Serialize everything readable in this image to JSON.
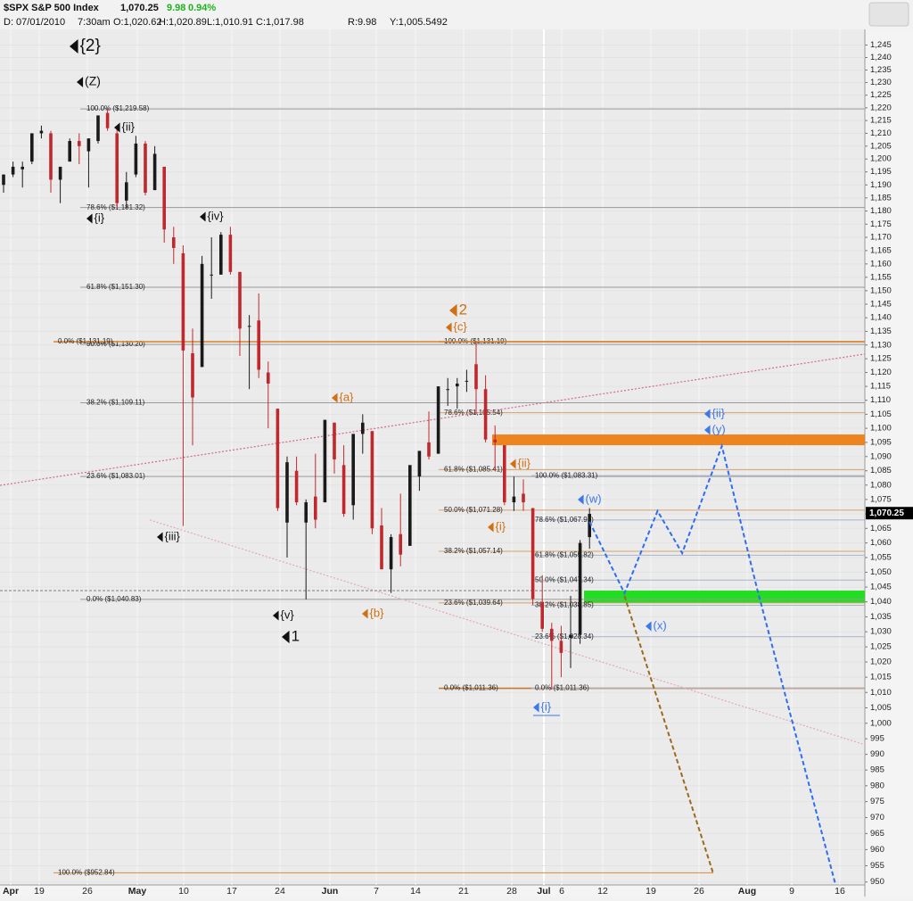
{
  "header": {
    "symbol": "$SPX S&P 500 Index",
    "change": "9.98",
    "change_pct": "0.94%",
    "date": "D: 07/01/2010",
    "time": "7:30am",
    "open": "O:1,020.62",
    "high": "H:1,020.89",
    "low": "L:1,010.91",
    "close": "C:1,017.98",
    "range": "R:9.98",
    "y": "Y:1,005.5492"
  },
  "chart_data": {
    "type": "candlestick",
    "log_scale": true,
    "grid": true,
    "ylim": [
      949.1,
      1251.3
    ],
    "yticks": [
      950,
      955,
      960,
      965,
      970,
      975,
      980,
      985,
      990,
      995,
      {
        "value": 1000,
        "label": "1,000"
      },
      {
        "value": 1005,
        "label": "1,005"
      },
      {
        "value": 1010,
        "label": "1,010"
      },
      {
        "value": 1015,
        "label": "1,015"
      },
      {
        "value": 1020,
        "label": "1,020"
      },
      {
        "value": 1025,
        "label": "1,025"
      },
      {
        "value": 1030,
        "label": "1,030"
      },
      {
        "value": 1035,
        "label": "1,035"
      },
      {
        "value": 1040,
        "label": "1,040"
      },
      {
        "value": 1045,
        "label": "1,045"
      },
      {
        "value": 1050,
        "label": "1,050"
      },
      {
        "value": 1055,
        "label": "1,055"
      },
      {
        "value": 1060,
        "label": "1,060"
      },
      {
        "value": 1065,
        "label": "1,065"
      },
      {
        "value": 1070,
        "label": "1,070"
      },
      {
        "value": 1075,
        "label": "1,075"
      },
      {
        "value": 1080,
        "label": "1,080"
      },
      {
        "value": 1085,
        "label": "1,085"
      },
      {
        "value": 1090,
        "label": "1,090"
      },
      {
        "value": 1095,
        "label": "1,095"
      },
      {
        "value": 1100,
        "label": "1,100"
      },
      {
        "value": 1105,
        "label": "1,105"
      },
      {
        "value": 1110,
        "label": "1,110"
      },
      {
        "value": 1115,
        "label": "1,115"
      },
      {
        "value": 1120,
        "label": "1,120"
      },
      {
        "value": 1125,
        "label": "1,125"
      },
      {
        "value": 1130,
        "label": "1,130"
      },
      {
        "value": 1135,
        "label": "1,135"
      },
      {
        "value": 1140,
        "label": "1,140"
      },
      {
        "value": 1145,
        "label": "1,145"
      },
      {
        "value": 1150,
        "label": "1,150"
      },
      {
        "value": 1155,
        "label": "1,155"
      },
      {
        "value": 1160,
        "label": "1,160"
      },
      {
        "value": 1165,
        "label": "1,165"
      },
      {
        "value": 1170,
        "label": "1,170"
      },
      {
        "value": 1175,
        "label": "1,175"
      },
      {
        "value": 1180,
        "label": "1,180"
      },
      {
        "value": 1185,
        "label": "1,185"
      },
      {
        "value": 1190,
        "label": "1,190"
      },
      {
        "value": 1195,
        "label": "1,195"
      },
      {
        "value": 1200,
        "label": "1,200"
      },
      {
        "value": 1205,
        "label": "1,205"
      },
      {
        "value": 1210,
        "label": "1,210"
      },
      {
        "value": 1215,
        "label": "1,215"
      },
      {
        "value": 1220,
        "label": "1,220"
      },
      {
        "value": 1225,
        "label": "1,225"
      },
      {
        "value": 1230,
        "label": "1,230"
      },
      {
        "value": 1235,
        "label": "1,235"
      },
      {
        "value": 1240,
        "label": "1,240"
      },
      {
        "value": 1245,
        "label": "1,245"
      }
    ],
    "categories": [
      "Apr",
      "19",
      "26",
      "May",
      "10",
      "17",
      "24",
      "Jun",
      "7",
      "14",
      "21",
      "28",
      "Jul",
      "6",
      "12",
      "19",
      "26",
      "Aug",
      "9",
      "16"
    ],
    "last_price": {
      "value": 1070.25,
      "label": "1,070.25",
      "color": "#000000"
    },
    "series": [
      {
        "up_color": "#1a1a1a",
        "down_color": "#c0282d",
        "open": [
          1190,
          1194,
          1196,
          1199,
          1210,
          1210,
          1192,
          1199,
          1207,
          1203,
          1207,
          1218,
          1210,
          1184,
          1194,
          1206,
          1188,
          1197,
          1170,
          1164,
          1127,
          1122,
          1156,
          1156,
          1171,
          1157,
          1137,
          1139,
          1120,
          1107,
          1067,
          1085,
          1067,
          1076,
          1074,
          1102,
          1087,
          1073,
          1098,
          1099,
          1066,
          1051,
          1063,
          1059,
          1083,
          1095,
          1091,
          1114,
          1115,
          1117,
          1123,
          1114,
          1096,
          1094,
          1074,
          1077,
          1072,
          1040,
          1031,
          1027,
          1028,
          1029,
          1062
        ],
        "high": [
          1194,
          1199,
          1199,
          1210,
          1213,
          1211,
          1197,
          1208,
          1210,
          1208,
          1217,
          1219.58,
          1212,
          1195,
          1209,
          1207,
          1205,
          1197,
          1174,
          1167,
          1136,
          1163,
          1170,
          1172,
          1174,
          1157,
          1141,
          1149,
          1124,
          1107,
          1090,
          1090,
          1075,
          1091,
          1103,
          1102,
          1094,
          1098,
          1105,
          1099,
          1072,
          1063,
          1077,
          1087,
          1092,
          1106,
          1115,
          1118,
          1118,
          1121,
          1131.19,
          1119,
          1101,
          1094,
          1083,
          1082,
          1072,
          1049,
          1033,
          1032,
          1042,
          1061,
          1072
        ],
        "low": [
          1187,
          1193,
          1189,
          1198,
          1208,
          1187,
          1183,
          1199,
          1198,
          1189,
          1206,
          1211,
          1181,
          1181,
          1193,
          1186,
          1188,
          1168,
          1160,
          1065.8,
          1094,
          1122,
          1147,
          1156,
          1156,
          1126,
          1114,
          1118,
          1100,
          1071,
          1055,
          1073,
          1040.83,
          1065,
          1074,
          1084,
          1069,
          1068,
          1091,
          1063,
          1051,
          1043,
          1052,
          1059,
          1078,
          1089,
          1091,
          1108,
          1107,
          1113,
          1105,
          1095,
          1085,
          1073,
          1071,
          1071,
          1039,
          1030,
          1010.91,
          1015,
          1018,
          1026,
          1058
        ],
        "close": [
          1194,
          1197,
          1197,
          1210,
          1211,
          1192,
          1197,
          1207,
          1205,
          1208,
          1217,
          1212,
          1183,
          1191,
          1206,
          1187,
          1202,
          1173,
          1166,
          1128,
          1111,
          1160,
          1156,
          1171,
          1157,
          1136,
          1137,
          1121,
          1116,
          1072,
          1088,
          1074,
          1074,
          1068,
          1103,
          1089,
          1070,
          1098,
          1102,
          1065,
          1051,
          1062,
          1056,
          1087,
          1092,
          1090,
          1115,
          1114,
          1116,
          1117,
          1114,
          1096,
          1095,
          1074,
          1076,
          1074,
          1041,
          1031,
          1027,
          1023,
          1029,
          1060,
          1070
        ]
      }
    ],
    "fib_levels": [
      {
        "value": 1219.58,
        "label": "100.0%  ($1,219.58)",
        "color": "#9a9a9a"
      },
      {
        "value": 1181.32,
        "label": "78.6%  ($1,181.32)",
        "color": "#9a9a9a"
      },
      {
        "value": 1151.3,
        "label": "61.8%  ($1,151.30)",
        "color": "#9a9a9a"
      },
      {
        "value": 1130.2,
        "label": "50.0%  ($1,130.20)",
        "color": "#9a9a9a"
      },
      {
        "value": 1109.11,
        "label": "38.2%  ($1,109.11)",
        "color": "#9a9a9a"
      },
      {
        "value": 1083.01,
        "label": "23.6%  ($1,083.01)",
        "color": "#9a9a9a"
      },
      {
        "value": 1040.83,
        "label": "0.0%  ($1,040.83)",
        "color": "#9a9a9a"
      },
      {
        "value": 1131.19,
        "label": "100.0%  ($1,131.19)",
        "color": "#d4883c"
      },
      {
        "value": 1105.54,
        "label": "78.6%  ($1,105.54)",
        "color": "#d9a06a"
      },
      {
        "value": 1085.41,
        "label": "61.8%  ($1,085.41)",
        "color": "#d9a06a"
      },
      {
        "value": 1071.28,
        "label": "50.0%  ($1,071.28)",
        "color": "#d9a06a"
      },
      {
        "value": 1057.14,
        "label": "38.2%  ($1,057.14)",
        "color": "#d9a06a"
      },
      {
        "value": 1039.64,
        "label": "23.6%  ($1,039.64)",
        "color": "#d9a06a"
      },
      {
        "value": 1011.36,
        "label": "0.0%  ($1,011.36)",
        "color": "#c27a35"
      },
      {
        "value": 1083.31,
        "label": "100.0%  ($1,083.31)",
        "color": "#a8b3c9"
      },
      {
        "value": 1067.91,
        "label": "78.6%  ($1,067.91)",
        "color": "#a8b3c9"
      },
      {
        "value": 1055.82,
        "label": "61.8%  ($1,055.82)",
        "color": "#a8b3c9"
      },
      {
        "value": 1047.34,
        "label": "50.0%  ($1,047.34)",
        "color": "#a8b3c9"
      },
      {
        "value": 1038.85,
        "label": "38.2%  ($1,038.85)",
        "color": "#a8b3c9"
      },
      {
        "value": 1028.34,
        "label": "23.6%  ($1,028.34)",
        "color": "#a8b3c9"
      },
      {
        "value": 1011.36,
        "label": "0.0%  ($1,011.36)",
        "color": "#a8b3c9"
      },
      {
        "value": 952.84,
        "label": "100.0%  ($952.84)",
        "color": "#d98a3a"
      },
      {
        "value": 1131.19,
        "label": "0.0%  ($1,131.19)",
        "color": "#d98a3a"
      }
    ],
    "zones": [
      {
        "range": [
          1094.0,
          1097.8
        ],
        "color": "#ee8420"
      },
      {
        "range": [
          1039.6,
          1043.8
        ],
        "color": "#22dd22"
      }
    ],
    "trend_lines": [
      {
        "values": [
          1079.9,
          1126.7
        ],
        "color": "#d46a8a"
      },
      {
        "values": [
          1067.9,
          993.1
        ],
        "color": "#e2a8b8"
      },
      {
        "values": [
          1043.8,
          1043.8
        ],
        "color": "#888888"
      }
    ],
    "projections": [
      {
        "values": [
          1067.3,
          1042.9,
          1071.0,
          1056.5,
          1093.7,
          1043.5,
          949.5
        ],
        "color": "#2f6ef0"
      },
      {
        "values": [
          1042.0,
          952.5
        ],
        "color": "#9c6a1c"
      }
    ],
    "wave_labels": [
      {
        "text": "{2}",
        "color": "#111111"
      },
      {
        "text": "(Z)",
        "color": "#111111"
      },
      {
        "text": "{ii}",
        "color": "#111111"
      },
      {
        "text": "{i}",
        "color": "#111111"
      },
      {
        "text": "{iv}",
        "color": "#111111"
      },
      {
        "text": "{iii}",
        "color": "#111111"
      },
      {
        "text": "{v}",
        "color": "#111111"
      },
      {
        "text": "1",
        "color": "#111111"
      },
      {
        "text": "{a}",
        "color": "#d26f12"
      },
      {
        "text": "{b}",
        "color": "#d26f12"
      },
      {
        "text": "2",
        "color": "#d26f12"
      },
      {
        "text": "{c}",
        "color": "#d26f12"
      },
      {
        "text": "{ii}",
        "color": "#d26f12"
      },
      {
        "text": "{i}",
        "color": "#d26f12"
      },
      {
        "text": "(w)",
        "color": "#3a78f0"
      },
      {
        "text": "{ii}",
        "color": "#3a78f0"
      },
      {
        "text": "(y)",
        "color": "#3a78f0"
      },
      {
        "text": "(x)",
        "color": "#3a78f0"
      },
      {
        "text": "{i}",
        "color": "#3a78f0"
      }
    ]
  }
}
